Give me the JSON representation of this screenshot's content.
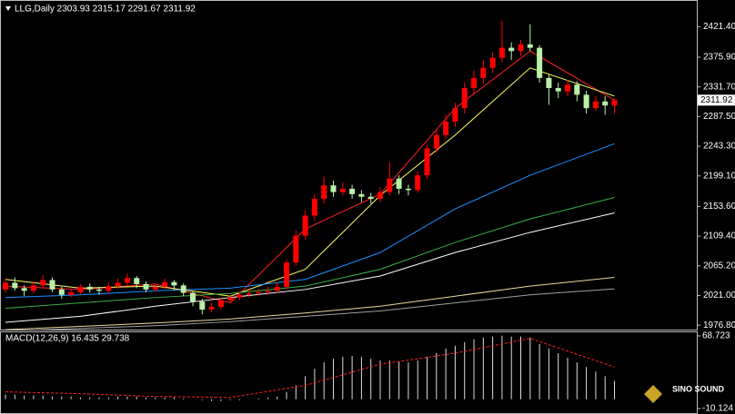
{
  "chart_data": [
    {
      "type": "candlestick",
      "title": "LLG,Daily 2303.93 2315.17 2291.67 2311.92",
      "up_color": "#ff0000",
      "down_color": "#b8f0a8",
      "ylim": [
        1968.9,
        2461.1
      ],
      "yticks": [
        {
          "value": 2421.4,
          "label": "2421.40"
        },
        {
          "value": 2375.9,
          "label": "2375.90"
        },
        {
          "value": 2331.7,
          "label": "2331.70"
        },
        {
          "value": 2287.5,
          "label": "2287.50"
        },
        {
          "value": 2243.3,
          "label": "2243.30"
        },
        {
          "value": 2199.1,
          "label": "2199.10"
        },
        {
          "value": 2153.6,
          "label": "2153.60"
        },
        {
          "value": 2109.4,
          "label": "2109.40"
        },
        {
          "value": 2065.2,
          "label": "2065.20"
        },
        {
          "value": 2021.0,
          "label": "2021.00"
        },
        {
          "value": 1976.8,
          "label": "1976.80"
        }
      ],
      "last_price": 2311.92,
      "candles": [
        [
          2030,
          2046,
          2025,
          2040
        ],
        [
          2040,
          2048,
          2028,
          2032
        ],
        [
          2032,
          2036,
          2020,
          2028
        ],
        [
          2028,
          2042,
          2024,
          2036
        ],
        [
          2036,
          2052,
          2032,
          2044
        ],
        [
          2044,
          2048,
          2026,
          2030
        ],
        [
          2030,
          2034,
          2016,
          2022
        ],
        [
          2022,
          2031,
          2018,
          2026
        ],
        [
          2026,
          2038,
          2022,
          2034
        ],
        [
          2034,
          2039,
          2025,
          2030
        ],
        [
          2030,
          2034,
          2022,
          2028
        ],
        [
          2028,
          2041,
          2024,
          2035
        ],
        [
          2035,
          2046,
          2031,
          2040
        ],
        [
          2040,
          2054,
          2036,
          2047
        ],
        [
          2047,
          2050,
          2032,
          2038
        ],
        [
          2038,
          2042,
          2026,
          2030
        ],
        [
          2030,
          2039,
          2027,
          2034
        ],
        [
          2034,
          2046,
          2030,
          2041
        ],
        [
          2041,
          2044,
          2029,
          2036
        ],
        [
          2036,
          2039,
          2020,
          2025
        ],
        [
          2025,
          2028,
          2005,
          2012
        ],
        [
          2012,
          2016,
          1993,
          2000
        ],
        [
          2000,
          2010,
          1996,
          2004
        ],
        [
          2004,
          2018,
          2000,
          2014
        ],
        [
          2014,
          2022,
          2010,
          2018
        ],
        [
          2018,
          2027,
          2014,
          2022
        ],
        [
          2022,
          2030,
          2018,
          2024
        ],
        [
          2024,
          2031,
          2020,
          2026
        ],
        [
          2026,
          2034,
          2022,
          2028
        ],
        [
          2028,
          2040,
          2025,
          2034
        ],
        [
          2034,
          2075,
          2030,
          2070
        ],
        [
          2070,
          2118,
          2065,
          2110
        ],
        [
          2110,
          2148,
          2104,
          2140
        ],
        [
          2140,
          2172,
          2133,
          2165
        ],
        [
          2165,
          2198,
          2158,
          2185
        ],
        [
          2185,
          2192,
          2168,
          2175
        ],
        [
          2175,
          2190,
          2170,
          2180
        ],
        [
          2180,
          2186,
          2165,
          2172
        ],
        [
          2172,
          2178,
          2160,
          2168
        ],
        [
          2168,
          2174,
          2158,
          2165
        ],
        [
          2165,
          2182,
          2160,
          2175
        ],
        [
          2175,
          2220,
          2170,
          2195
        ],
        [
          2195,
          2200,
          2172,
          2180
        ],
        [
          2180,
          2186,
          2170,
          2178
        ],
        [
          2178,
          2206,
          2174,
          2200
        ],
        [
          2200,
          2246,
          2195,
          2240
        ],
        [
          2240,
          2268,
          2233,
          2260
        ],
        [
          2260,
          2290,
          2254,
          2280
        ],
        [
          2280,
          2308,
          2272,
          2300
        ],
        [
          2300,
          2338,
          2292,
          2330
        ],
        [
          2330,
          2356,
          2322,
          2345
        ],
        [
          2345,
          2372,
          2336,
          2360
        ],
        [
          2360,
          2384,
          2352,
          2375
        ],
        [
          2375,
          2430,
          2368,
          2390
        ],
        [
          2390,
          2398,
          2372,
          2385
        ],
        [
          2385,
          2402,
          2378,
          2395
        ],
        [
          2395,
          2425,
          2385,
          2390
        ],
        [
          2390,
          2394,
          2338,
          2345
        ],
        [
          2345,
          2350,
          2305,
          2330
        ],
        [
          2330,
          2338,
          2315,
          2325
        ],
        [
          2325,
          2342,
          2318,
          2335
        ],
        [
          2335,
          2340,
          2310,
          2320
        ],
        [
          2320,
          2326,
          2292,
          2300
        ],
        [
          2300,
          2318,
          2296,
          2310
        ],
        [
          2310,
          2318,
          2290,
          2303.93
        ],
        [
          2303.93,
          2315.17,
          2291.67,
          2311.92
        ]
      ],
      "ma_x": [
        0,
        8,
        16,
        24,
        32,
        40,
        48,
        56,
        65
      ],
      "series": [
        {
          "color": "#ff2020",
          "values": [
            2035,
            2030,
            2038,
            2010,
            2120,
            2172,
            2300,
            2385,
            2312
          ]
        },
        {
          "color": "#ffff60",
          "values": [
            2045,
            2032,
            2035,
            2020,
            2060,
            2170,
            2260,
            2360,
            2318
          ]
        },
        {
          "color": "#1e90ff",
          "values": [
            2018,
            2022,
            2028,
            2032,
            2045,
            2085,
            2150,
            2200,
            2247
          ]
        },
        {
          "color": "#3cb043",
          "values": [
            2002,
            2010,
            2018,
            2024,
            2035,
            2060,
            2100,
            2135,
            2167
          ]
        },
        {
          "color": "#ffffff",
          "values": [
            1981,
            1990,
            2005,
            2018,
            2030,
            2050,
            2085,
            2115,
            2144
          ]
        },
        {
          "color": "#e8d8a0",
          "values": [
            1970,
            1975,
            1980,
            1986,
            1995,
            2005,
            2020,
            2035,
            2048
          ]
        },
        {
          "color": "#a0a0a0",
          "values": [
            1968,
            1972,
            1976,
            1982,
            1990,
            1998,
            2010,
            2022,
            2031
          ]
        }
      ]
    },
    {
      "type": "macd",
      "title": "MACD(12,26,9) 16.435 29.738",
      "ylim": [
        -10.124,
        68.723
      ],
      "yticks": [
        68.723,
        -10.124
      ],
      "histogram": [
        5,
        5,
        4,
        4,
        4,
        3,
        3,
        3,
        2,
        2,
        2,
        2,
        3,
        3,
        3,
        2,
        2,
        2,
        2,
        1,
        0,
        -1,
        -2,
        -2,
        -1,
        -1,
        0,
        1,
        2,
        3,
        8,
        15,
        25,
        33,
        40,
        44,
        46,
        47,
        46,
        44,
        42,
        42,
        41,
        40,
        42,
        46,
        50,
        55,
        58,
        62,
        65,
        67,
        68,
        69,
        68,
        68,
        67,
        60,
        55,
        50,
        45,
        40,
        35,
        30,
        25,
        20
      ],
      "signal_x": [
        0,
        8,
        16,
        24,
        32,
        40,
        48,
        56,
        65
      ],
      "signal": [
        8,
        6,
        3,
        2,
        15,
        38,
        50,
        66,
        35
      ],
      "signal_color": "#ff2020"
    }
  ],
  "watermark": "SINO SOUND"
}
